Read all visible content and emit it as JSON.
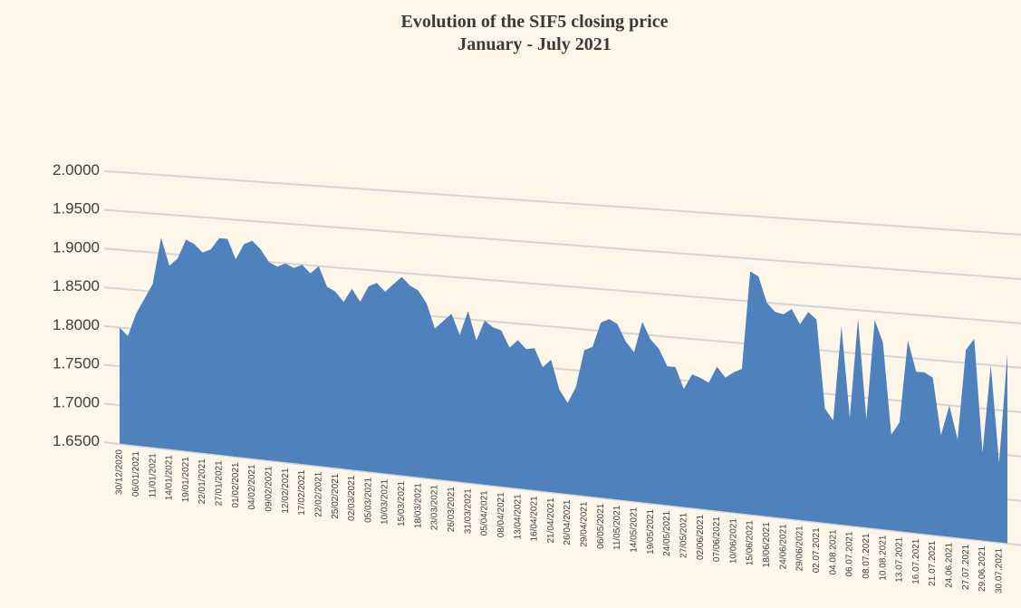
{
  "chart_data": {
    "type": "area",
    "title": "Evolution of the SIF5 closing price",
    "subtitle": "January - July 2021",
    "color": "#4f81bd",
    "grid": true,
    "ylim": [
      1.65,
      2.0
    ],
    "yticks": [
      {
        "value": 1.65,
        "label": "1.6500"
      },
      {
        "value": 1.7,
        "label": "1.7000"
      },
      {
        "value": 1.75,
        "label": "1.7500"
      },
      {
        "value": 1.8,
        "label": "1.8000"
      },
      {
        "value": 1.85,
        "label": "1.8500"
      },
      {
        "value": 1.9,
        "label": "1.9000"
      },
      {
        "value": 1.95,
        "label": "1.9500"
      },
      {
        "value": 2.0,
        "label": "2.0000"
      }
    ],
    "categories": [
      "30/12/2020",
      null,
      "06/01/2021",
      null,
      "11/01/2021",
      null,
      "14/01/2021",
      null,
      "19/01/2021",
      null,
      "22/01/2021",
      null,
      "27/01/2021",
      null,
      "01/02/2021",
      null,
      "04/02/2021",
      null,
      "09/02/2021",
      null,
      "12/02/2021",
      null,
      "17/02/2021",
      null,
      "22/02/2021",
      null,
      "25/02/2021",
      null,
      "02/03/2021",
      null,
      "05/03/2021",
      null,
      "10/03/2021",
      null,
      "15/03/2021",
      null,
      "18/03/2021",
      null,
      "23/03/2021",
      null,
      "26/03/2021",
      null,
      "31/03/2021",
      null,
      "05/04/2021",
      null,
      "08/04/2021",
      null,
      "13/04/2021",
      null,
      "16/04/2021",
      null,
      "21/04/2021",
      null,
      "26/04/2021",
      null,
      "29/04/2021",
      null,
      "06/05/2021",
      null,
      "11/05/2021",
      null,
      "14/05/2021",
      null,
      "19/05/2021",
      null,
      "24/05/2021",
      null,
      "27/05/2021",
      null,
      "02/06/2021",
      null,
      "07/06/2021",
      null,
      "10/06/2021",
      null,
      "15/06/2021",
      null,
      "18/06/2021",
      null,
      "24/06/2021",
      null,
      "29/06/2021",
      null,
      "02.07.2021",
      null,
      "04.08.2021",
      null,
      "06.07.2021",
      null,
      "08.07.2021",
      null,
      "10.08.2021",
      null,
      "13.07.2021",
      null,
      "16.07.2021",
      null,
      "21.07.2021",
      null,
      "24.06.2021",
      null,
      "27.07.2021",
      null,
      "29.06.2021",
      null,
      "30.07.2021",
      null
    ],
    "values": [
      1.8,
      1.79,
      1.82,
      1.84,
      1.86,
      1.92,
      1.885,
      1.895,
      1.92,
      1.915,
      1.905,
      1.91,
      1.925,
      1.925,
      1.9,
      1.92,
      1.925,
      1.915,
      1.9,
      1.895,
      1.9,
      1.895,
      1.9,
      1.89,
      1.9,
      1.875,
      1.87,
      1.858,
      1.875,
      1.86,
      1.88,
      1.885,
      1.875,
      1.885,
      1.895,
      1.885,
      1.88,
      1.865,
      1.835,
      1.845,
      1.855,
      1.83,
      1.86,
      1.825,
      1.85,
      1.843,
      1.84,
      1.82,
      1.83,
      1.82,
      1.822,
      1.8,
      1.81,
      1.775,
      1.76,
      1.78,
      1.825,
      1.83,
      1.86,
      1.865,
      1.86,
      1.84,
      1.828,
      1.865,
      1.845,
      1.835,
      1.815,
      1.815,
      1.79,
      1.808,
      1.805,
      1.8,
      1.82,
      1.808,
      1.815,
      1.82,
      1.935,
      1.93,
      1.9,
      1.89,
      1.888,
      1.895,
      1.878,
      1.893,
      1.885,
      1.783,
      1.77,
      1.88,
      1.775,
      1.89,
      1.775,
      1.89,
      1.865,
      1.76,
      1.775,
      1.87,
      1.835,
      1.835,
      1.83,
      1.765,
      1.8,
      1.762,
      1.865,
      1.878,
      1.75,
      1.85,
      1.74,
      1.865
    ]
  }
}
